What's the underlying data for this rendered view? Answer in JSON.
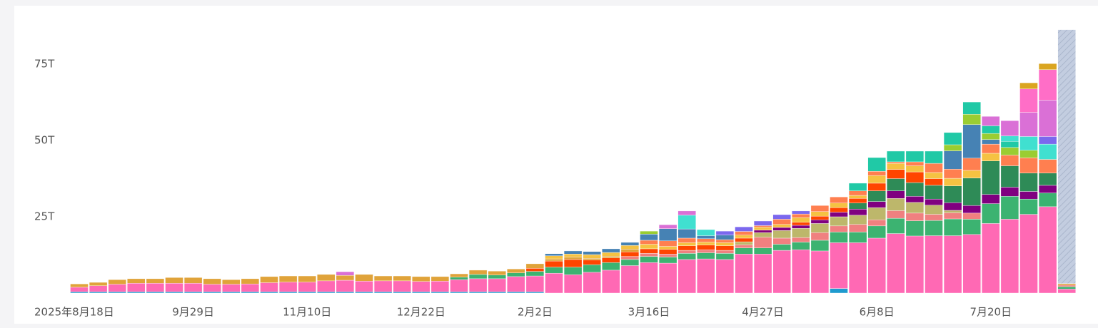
{
  "chart_data": {
    "type": "stacked_bar",
    "categories": [
      "2025年8月18日",
      null,
      null,
      null,
      null,
      null,
      "9月29日",
      null,
      null,
      null,
      null,
      null,
      "11月10日",
      null,
      null,
      null,
      null,
      null,
      "12月22日",
      null,
      null,
      null,
      null,
      null,
      "2月2日",
      null,
      null,
      null,
      null,
      null,
      "3月16日",
      null,
      null,
      null,
      null,
      null,
      "4月27日",
      null,
      null,
      null,
      null,
      null,
      "6月8日",
      null,
      null,
      null,
      null,
      null,
      "7月20日",
      null,
      null,
      null,
      null
    ],
    "ylim": [
      0,
      90
    ],
    "yticks": [
      {
        "value": 25,
        "label": "25T"
      },
      {
        "value": 50,
        "label": "50T"
      },
      {
        "value": 75,
        "label": "75T"
      }
    ],
    "series": [
      {
        "color": "#1f9bcf",
        "values": [
          0.4,
          0.4,
          0.4,
          0.4,
          0.4,
          0.4,
          0.4,
          0.4,
          0.4,
          0.4,
          0.4,
          0.4,
          0.4,
          0.4,
          0.4,
          0.4,
          0.4,
          0.4,
          0.4,
          0.4,
          0.4,
          0.4,
          0.4,
          0.4,
          0.4,
          null,
          null,
          null,
          null,
          null,
          null,
          null,
          null,
          null,
          null,
          null,
          null,
          null,
          null,
          null,
          1.5,
          null,
          null,
          null,
          null,
          null,
          null,
          null,
          null,
          null,
          null,
          null,
          null
        ]
      },
      {
        "color": "#ff69b4",
        "values": [
          1.5,
          2.0,
          2.5,
          2.8,
          2.8,
          2.8,
          2.8,
          2.5,
          2.5,
          2.6,
          3.0,
          3.2,
          3.2,
          3.6,
          3.8,
          3.5,
          3.6,
          3.6,
          3.4,
          3.5,
          4.0,
          4.3,
          4.3,
          5.0,
          5.2,
          6.5,
          6.0,
          6.8,
          7.5,
          9.0,
          10.0,
          9.8,
          11.0,
          11.2,
          11.0,
          12.8,
          12.8,
          14.0,
          14.2,
          13.8,
          15.0,
          16.5,
          18.0,
          19.5,
          18.7,
          18.8,
          18.8,
          19.2,
          22.8,
          24.2,
          25.8,
          28.3,
          1.3
        ]
      },
      {
        "color": "#3cb371",
        "values": [
          null,
          null,
          null,
          null,
          null,
          null,
          null,
          null,
          null,
          null,
          null,
          null,
          null,
          null,
          null,
          null,
          null,
          null,
          null,
          null,
          0.8,
          1.4,
          1.2,
          1.2,
          1.5,
          2.0,
          2.5,
          2.5,
          2.5,
          2.0,
          2.0,
          2.0,
          2.0,
          2.0,
          2.0,
          2.0,
          2.0,
          2.0,
          2.5,
          3.5,
          3.5,
          3.5,
          4.0,
          5.0,
          5.0,
          5.0,
          5.5,
          5.0,
          6.5,
          7.5,
          5.0,
          4.5,
          0.8
        ]
      },
      {
        "color": "#f08080",
        "values": [
          null,
          null,
          null,
          null,
          null,
          null,
          null,
          null,
          null,
          null,
          null,
          null,
          null,
          null,
          null,
          null,
          null,
          null,
          null,
          null,
          null,
          null,
          null,
          null,
          null,
          null,
          null,
          null,
          null,
          1.0,
          1.0,
          1.0,
          1.0,
          1.0,
          1.0,
          1.0,
          3.5,
          2.0,
          1.5,
          2.5,
          2.0,
          2.5,
          2.0,
          2.5,
          2.5,
          2.0,
          2.0,
          2.0,
          null,
          null,
          null,
          null,
          0.5
        ]
      },
      {
        "color": "#bdb76b",
        "values": [
          null,
          null,
          null,
          null,
          null,
          null,
          null,
          null,
          null,
          null,
          null,
          null,
          null,
          null,
          null,
          null,
          null,
          null,
          null,
          null,
          null,
          null,
          null,
          null,
          null,
          null,
          null,
          null,
          null,
          null,
          null,
          null,
          null,
          null,
          null,
          1.0,
          1.5,
          2.5,
          3.0,
          3.0,
          3.0,
          3.0,
          4.0,
          4.0,
          3.5,
          3.0,
          0.8,
          null,
          null,
          null,
          null,
          null,
          null
        ]
      },
      {
        "color": "#800080",
        "values": [
          null,
          null,
          null,
          null,
          null,
          null,
          null,
          null,
          null,
          null,
          null,
          null,
          null,
          null,
          null,
          null,
          null,
          null,
          null,
          null,
          null,
          null,
          null,
          null,
          null,
          null,
          null,
          null,
          null,
          null,
          null,
          null,
          null,
          null,
          null,
          null,
          0.8,
          1.0,
          1.0,
          1.2,
          1.5,
          2.0,
          2.0,
          2.5,
          2.0,
          2.0,
          2.5,
          2.5,
          3.0,
          3.0,
          2.5,
          2.5,
          null
        ]
      },
      {
        "color": "#2e8b57",
        "values": [
          null,
          null,
          null,
          null,
          null,
          null,
          null,
          null,
          null,
          null,
          null,
          null,
          null,
          null,
          null,
          null,
          null,
          null,
          null,
          null,
          null,
          null,
          null,
          null,
          null,
          null,
          null,
          null,
          null,
          null,
          null,
          null,
          null,
          null,
          null,
          null,
          null,
          null,
          null,
          null,
          null,
          2.0,
          3.5,
          4.0,
          4.5,
          4.5,
          5.5,
          9.0,
          11.0,
          7.0,
          6.0,
          4.0,
          null
        ]
      },
      {
        "color": "#ff4500",
        "values": [
          null,
          null,
          null,
          null,
          null,
          null,
          null,
          null,
          null,
          null,
          null,
          null,
          null,
          null,
          null,
          null,
          null,
          null,
          null,
          null,
          null,
          null,
          null,
          null,
          1.0,
          2.0,
          2.5,
          1.5,
          1.5,
          1.5,
          1.5,
          1.5,
          1.5,
          1.5,
          1.5,
          1.2,
          null,
          null,
          1.0,
          1.2,
          1.5,
          1.5,
          2.5,
          3.0,
          3.5,
          2.2,
          null,
          null,
          null,
          null,
          null,
          null,
          null
        ]
      },
      {
        "color": "#e0a33a",
        "values": [
          1.1,
          1.1,
          1.5,
          1.5,
          1.5,
          1.9,
          1.9,
          1.8,
          1.5,
          1.7,
          2.0,
          2.0,
          2.0,
          2.1,
          1.6,
          2.2,
          1.6,
          1.6,
          1.6,
          1.5,
          1.1,
          1.4,
          1.3,
          1.3,
          1.5,
          0.7,
          0.8,
          0.6,
          0.6,
          0.9,
          null,
          null,
          null,
          null,
          null,
          null,
          null,
          null,
          null,
          null,
          null,
          null,
          null,
          null,
          null,
          null,
          null,
          null,
          null,
          null,
          null,
          null,
          0.5
        ]
      },
      {
        "color": "#f5c242",
        "values": [
          null,
          null,
          null,
          null,
          null,
          null,
          null,
          null,
          null,
          null,
          null,
          null,
          null,
          null,
          null,
          null,
          null,
          null,
          null,
          null,
          null,
          null,
          null,
          null,
          null,
          1.0,
          1.0,
          1.2,
          1.2,
          1.2,
          1.5,
          1.0,
          1.0,
          1.0,
          1.0,
          1.0,
          1.0,
          1.0,
          1.5,
          1.5,
          1.5,
          1.0,
          2.5,
          2.0,
          2.0,
          2.0,
          2.5,
          2.5,
          2.5,
          null,
          null,
          null,
          null
        ]
      },
      {
        "color": "#ff7f50",
        "values": [
          null,
          null,
          null,
          null,
          null,
          null,
          null,
          null,
          null,
          null,
          null,
          null,
          null,
          null,
          null,
          null,
          null,
          null,
          null,
          null,
          null,
          null,
          null,
          null,
          null,
          null,
          null,
          null,
          null,
          null,
          1.3,
          1.8,
          1.5,
          1.1,
          1.0,
          1.2,
          0.5,
          1.7,
          1.2,
          2.0,
          2.0,
          1.5,
          1.4,
          0.5,
          1.3,
          3.0,
          3.0,
          4.0,
          3.0,
          3.5,
          5.0,
          4.5,
          null
        ]
      },
      {
        "color": "#4682b4",
        "values": [
          null,
          null,
          null,
          null,
          null,
          null,
          null,
          null,
          null,
          null,
          null,
          null,
          null,
          null,
          null,
          null,
          null,
          null,
          null,
          null,
          null,
          null,
          null,
          null,
          null,
          0.7,
          1.0,
          1.0,
          1.2,
          1.0,
          2.0,
          4.0,
          3.0,
          1.0,
          1.5,
          null,
          null,
          null,
          null,
          null,
          null,
          null,
          null,
          null,
          null,
          null,
          6.0,
          11.0,
          1.5,
          null,
          null,
          null,
          null
        ]
      },
      {
        "color": "#9acd32",
        "values": [
          null,
          null,
          null,
          null,
          null,
          null,
          null,
          null,
          null,
          null,
          null,
          null,
          null,
          null,
          null,
          null,
          null,
          null,
          null,
          null,
          null,
          null,
          null,
          null,
          null,
          null,
          null,
          null,
          null,
          null,
          1.0,
          null,
          null,
          null,
          null,
          null,
          null,
          null,
          null,
          null,
          null,
          null,
          null,
          null,
          null,
          null,
          2.0,
          3.4,
          2.0,
          2.5,
          2.5,
          null,
          null
        ]
      },
      {
        "color": "#20c9a6",
        "values": [
          null,
          null,
          null,
          null,
          null,
          null,
          null,
          null,
          null,
          null,
          null,
          null,
          null,
          null,
          null,
          null,
          null,
          null,
          null,
          null,
          null,
          null,
          null,
          null,
          null,
          null,
          null,
          null,
          null,
          null,
          null,
          null,
          null,
          null,
          null,
          null,
          null,
          null,
          null,
          null,
          null,
          2.5,
          4.5,
          3.5,
          3.5,
          4.0,
          4.0,
          4.0,
          2.5,
          2.0,
          null,
          null,
          null
        ]
      },
      {
        "color": "#40e0d0",
        "values": [
          null,
          null,
          null,
          null,
          null,
          null,
          null,
          null,
          null,
          null,
          null,
          null,
          null,
          null,
          null,
          null,
          null,
          null,
          null,
          null,
          null,
          null,
          null,
          null,
          null,
          null,
          null,
          null,
          null,
          null,
          null,
          null,
          4.5,
          2.0,
          null,
          null,
          null,
          null,
          null,
          null,
          null,
          null,
          null,
          null,
          null,
          null,
          null,
          null,
          null,
          1.8,
          4.5,
          5.0,
          null
        ]
      },
      {
        "color": "#7b68ee",
        "values": [
          null,
          null,
          null,
          null,
          null,
          null,
          null,
          null,
          null,
          null,
          null,
          null,
          null,
          null,
          null,
          null,
          null,
          null,
          null,
          null,
          null,
          null,
          null,
          null,
          null,
          null,
          null,
          null,
          null,
          null,
          null,
          null,
          null,
          null,
          1.3,
          1.5,
          1.5,
          1.5,
          1.0,
          null,
          null,
          null,
          null,
          null,
          null,
          null,
          null,
          null,
          null,
          null,
          null,
          2.5,
          null
        ]
      },
      {
        "color": "#da70d6",
        "values": [
          null,
          null,
          null,
          null,
          null,
          null,
          null,
          null,
          null,
          null,
          null,
          null,
          null,
          null,
          1.2,
          null,
          null,
          null,
          null,
          null,
          null,
          null,
          null,
          null,
          null,
          null,
          null,
          null,
          null,
          null,
          null,
          1.3,
          1.4,
          null,
          null,
          null,
          null,
          null,
          null,
          null,
          null,
          null,
          null,
          null,
          null,
          null,
          null,
          null,
          3.1,
          5.0,
          7.9,
          11.9,
          null
        ]
      },
      {
        "color": "#ff6ec7",
        "values": [
          null,
          null,
          null,
          null,
          null,
          null,
          null,
          null,
          null,
          null,
          null,
          null,
          null,
          null,
          null,
          null,
          null,
          null,
          null,
          null,
          null,
          null,
          null,
          null,
          null,
          null,
          null,
          null,
          null,
          null,
          null,
          null,
          null,
          null,
          null,
          null,
          null,
          null,
          null,
          null,
          null,
          null,
          null,
          null,
          null,
          null,
          null,
          null,
          null,
          null,
          7.7,
          10.0,
          null
        ]
      },
      {
        "color": "#daa520",
        "values": [
          null,
          null,
          null,
          null,
          null,
          null,
          null,
          null,
          null,
          null,
          null,
          null,
          null,
          null,
          null,
          null,
          null,
          null,
          null,
          null,
          null,
          null,
          null,
          null,
          null,
          null,
          null,
          null,
          null,
          null,
          null,
          null,
          null,
          null,
          null,
          null,
          null,
          null,
          null,
          null,
          null,
          null,
          null,
          null,
          null,
          null,
          null,
          null,
          null,
          null,
          2.0,
          2.0,
          null
        ]
      },
      {
        "color": "#c3cde0",
        "hatched": true,
        "values": [
          null,
          null,
          null,
          null,
          null,
          null,
          null,
          null,
          null,
          null,
          null,
          null,
          null,
          null,
          null,
          null,
          null,
          null,
          null,
          null,
          null,
          null,
          null,
          null,
          null,
          null,
          null,
          null,
          null,
          null,
          null,
          null,
          null,
          null,
          null,
          null,
          null,
          null,
          null,
          null,
          null,
          null,
          null,
          null,
          null,
          null,
          null,
          null,
          null,
          null,
          null,
          null,
          83.2
        ]
      }
    ]
  }
}
